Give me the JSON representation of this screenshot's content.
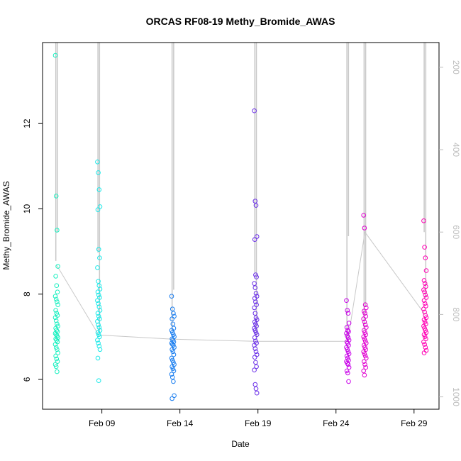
{
  "chart_data": {
    "type": "scatter",
    "title": "ORCAS RF08-19 Methy_Bromide_AWAS",
    "xlabel": "Date",
    "ylabel": "Methy_Bromide_AWAS",
    "x_ticks": [
      "Feb 09",
      "Feb 14",
      "Feb 19",
      "Feb 24",
      "Feb 29"
    ],
    "x_tick_days": [
      9,
      14,
      19,
      24,
      29
    ],
    "xlim_days": [
      5.2,
      30.6
    ],
    "y_ticks": [
      6,
      8,
      10,
      12
    ],
    "ylim": [
      5.3,
      13.9
    ],
    "y2_ticks": [
      200,
      400,
      600,
      800,
      1000
    ],
    "y2lim": [
      1030,
      140
    ],
    "y2_reversed": true,
    "y2_color": "#bdbdbd",
    "grid": false,
    "marker": "open-circle",
    "colors": [
      "#00ffcc",
      "#00e8f0",
      "#1a7ef0",
      "#6a2ee8",
      "#c800e8",
      "#ff00b4"
    ],
    "flights": [
      {
        "day": 6.1,
        "color": "#1af0c0",
        "values": [
          13.6,
          10.3,
          9.5,
          8.65,
          8.42,
          8.2,
          8.05,
          7.95,
          7.88,
          7.82,
          7.75,
          7.62,
          7.55,
          7.5,
          7.45,
          7.38,
          7.3,
          7.25,
          7.2,
          7.15,
          7.12,
          7.08,
          7.05,
          7.02,
          6.98,
          6.95,
          6.92,
          6.88,
          6.82,
          6.75,
          6.7,
          6.62,
          6.55,
          6.48,
          6.42,
          6.35,
          6.3,
          6.18
        ]
      },
      {
        "day": 8.8,
        "color": "#1ae8e8",
        "values": [
          11.1,
          10.85,
          10.45,
          10.05,
          9.98,
          9.05,
          8.85,
          8.62,
          8.3,
          8.2,
          8.12,
          8.05,
          7.98,
          7.92,
          7.85,
          7.78,
          7.7,
          7.62,
          7.55,
          7.48,
          7.42,
          7.36,
          7.28,
          7.22,
          7.15,
          7.1,
          7.05,
          7.0,
          6.92,
          6.85,
          6.78,
          6.7,
          6.5,
          5.97
        ]
      },
      {
        "day": 13.55,
        "color": "#1a7ef0",
        "values": [
          7.95,
          7.65,
          7.55,
          7.48,
          7.42,
          7.3,
          7.2,
          7.15,
          7.1,
          7.05,
          7.0,
          6.95,
          6.92,
          6.88,
          6.85,
          6.82,
          6.8,
          6.75,
          6.7,
          6.65,
          6.58,
          6.5,
          6.45,
          6.4,
          6.35,
          6.3,
          6.25,
          6.2,
          6.12,
          6.05,
          5.95,
          5.62,
          5.55
        ]
      },
      {
        "day": 18.85,
        "color": "#6a2ee8",
        "values": [
          12.3,
          10.18,
          10.08,
          9.35,
          9.28,
          8.45,
          8.4,
          8.25,
          8.15,
          8.02,
          7.95,
          7.9,
          7.82,
          7.75,
          7.68,
          7.55,
          7.45,
          7.4,
          7.35,
          7.3,
          7.25,
          7.2,
          7.15,
          7.1,
          7.05,
          6.98,
          6.9,
          6.85,
          6.8,
          6.72,
          6.65,
          6.58,
          6.52,
          6.4,
          6.3,
          6.22,
          5.88,
          5.78,
          5.68
        ]
      },
      {
        "day": 24.75,
        "color": "#c800e8",
        "values": [
          7.85,
          7.62,
          7.55,
          7.32,
          7.22,
          7.15,
          7.12,
          7.08,
          7.02,
          6.98,
          6.92,
          6.88,
          6.85,
          6.8,
          6.75,
          6.7,
          6.65,
          6.6,
          6.55,
          6.5,
          6.45,
          6.42,
          6.38,
          6.35,
          6.28,
          6.2,
          6.15,
          5.95
        ]
      },
      {
        "day": 25.85,
        "color": "#e000d0",
        "values": [
          9.85,
          9.55,
          7.75,
          7.68,
          7.6,
          7.55,
          7.48,
          7.42,
          7.35,
          7.28,
          7.22,
          7.15,
          7.1,
          7.05,
          7.0,
          6.95,
          6.9,
          6.85,
          6.8,
          6.75,
          6.7,
          6.65,
          6.6,
          6.55,
          6.5,
          6.42,
          6.35,
          6.28,
          6.2,
          6.1
        ]
      },
      {
        "day": 29.7,
        "color": "#ff00b4",
        "values": [
          9.72,
          9.1,
          8.85,
          8.55,
          8.32,
          8.25,
          8.18,
          8.1,
          8.05,
          7.98,
          7.92,
          7.85,
          7.78,
          7.72,
          7.65,
          7.58,
          7.5,
          7.45,
          7.4,
          7.35,
          7.3,
          7.25,
          7.2,
          7.15,
          7.1,
          7.05,
          7.0,
          6.95,
          6.88,
          6.82,
          6.75,
          6.68,
          6.62
        ]
      }
    ],
    "pressure_trace": {
      "color": "#c8c8c8",
      "note_series": "right axis, reversed",
      "points": [
        [
          6.1,
          680
        ],
        [
          8.8,
          850
        ],
        [
          13.55,
          860
        ],
        [
          18.85,
          865
        ],
        [
          24.75,
          865
        ],
        [
          25.85,
          600
        ],
        [
          29.7,
          800
        ]
      ],
      "spikes": [
        {
          "day": 6.05,
          "from": 140,
          "to": 670
        },
        {
          "day": 6.15,
          "from": 140,
          "to": 600
        },
        {
          "day": 8.75,
          "from": 140,
          "to": 650
        },
        {
          "day": 8.85,
          "from": 140,
          "to": 840
        },
        {
          "day": 13.5,
          "from": 140,
          "to": 840
        },
        {
          "day": 13.6,
          "from": 140,
          "to": 740
        },
        {
          "day": 18.8,
          "from": 140,
          "to": 700
        },
        {
          "day": 18.9,
          "from": 140,
          "to": 860
        },
        {
          "day": 24.7,
          "from": 140,
          "to": 860
        },
        {
          "day": 24.8,
          "from": 140,
          "to": 610
        },
        {
          "day": 25.8,
          "from": 140,
          "to": 840
        },
        {
          "day": 25.9,
          "from": 140,
          "to": 780
        },
        {
          "day": 29.65,
          "from": 140,
          "to": 600
        },
        {
          "day": 29.75,
          "from": 140,
          "to": 760
        }
      ]
    }
  }
}
